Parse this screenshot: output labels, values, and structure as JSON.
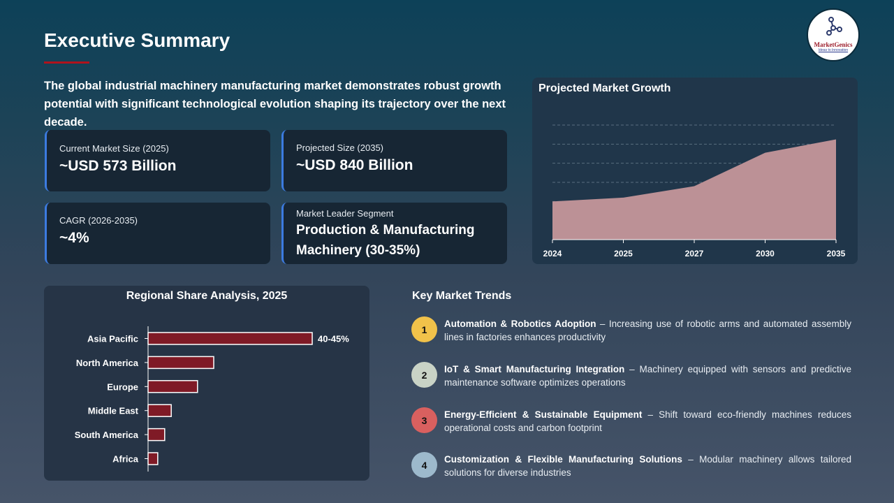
{
  "header": {
    "title": "Executive Summary",
    "intro": "The global industrial machinery manufacturing market demonstrates robust growth potential with significant technological evolution shaping its trajectory over the next decade.",
    "logo_text": "MarketGenics",
    "logo_tagline": "Ideas to Innovation"
  },
  "colors": {
    "accent_red": "#b0131c",
    "card_border": "#3c7be0",
    "area_fill": "#bc9196",
    "bar_fill": "#7f1a26"
  },
  "metrics": [
    {
      "label": "Current Market Size (2025)",
      "value": "~USD 573 Billion"
    },
    {
      "label": "Projected Size (2035)",
      "value": "~USD 840 Billion"
    },
    {
      "label": "CAGR (2026-2035)",
      "value": "~4%"
    },
    {
      "label": "Market Leader Segment",
      "value": "Production  & Manufacturing Machinery  (30-35%)"
    }
  ],
  "chart_data": [
    {
      "type": "area",
      "title": "Projected Market Growth",
      "categories": [
        "2024",
        "2025",
        "2027",
        "2030",
        "2035"
      ],
      "values": [
        2.0,
        2.2,
        2.8,
        4.55,
        5.25
      ],
      "ylim": [
        0,
        6
      ],
      "grid": true,
      "y_tick_labels": false
    },
    {
      "type": "bar",
      "orientation": "horizontal",
      "title": "Regional Share Analysis, 2025",
      "categories": [
        "Asia Pacific",
        "North America",
        "Europe",
        "Middle East",
        "South America",
        "Africa"
      ],
      "values": [
        42.5,
        17,
        12.8,
        6,
        4.3,
        2.5
      ],
      "data_labels": [
        "40-45%",
        "",
        "",
        "",
        "",
        ""
      ],
      "xlim": [
        0,
        50
      ],
      "unit": "%"
    }
  ],
  "trends": {
    "title": "Key Market Trends",
    "items": [
      {
        "num": "1",
        "color": "#f1c24a",
        "head": "Automation & Robotics Adoption",
        "body": " – Increasing use of robotic arms and automated assembly lines in factories enhances productivity"
      },
      {
        "num": "2",
        "color": "#c9d3c6",
        "head": "IoT & Smart Manufacturing Integration",
        "body": " – Machinery equipped with sensors and predictive maintenance software optimizes operations"
      },
      {
        "num": "3",
        "color": "#d9605f",
        "head": "Energy-Efficient & Sustainable Equipment",
        "body": " – Shift toward eco-friendly machines reduces operational costs and carbon footprint"
      },
      {
        "num": "4",
        "color": "#9db9cc",
        "head": "Customization & Flexible Manufacturing Solutions",
        "body": " – Modular machinery allows tailored solutions for diverse industries"
      }
    ]
  }
}
